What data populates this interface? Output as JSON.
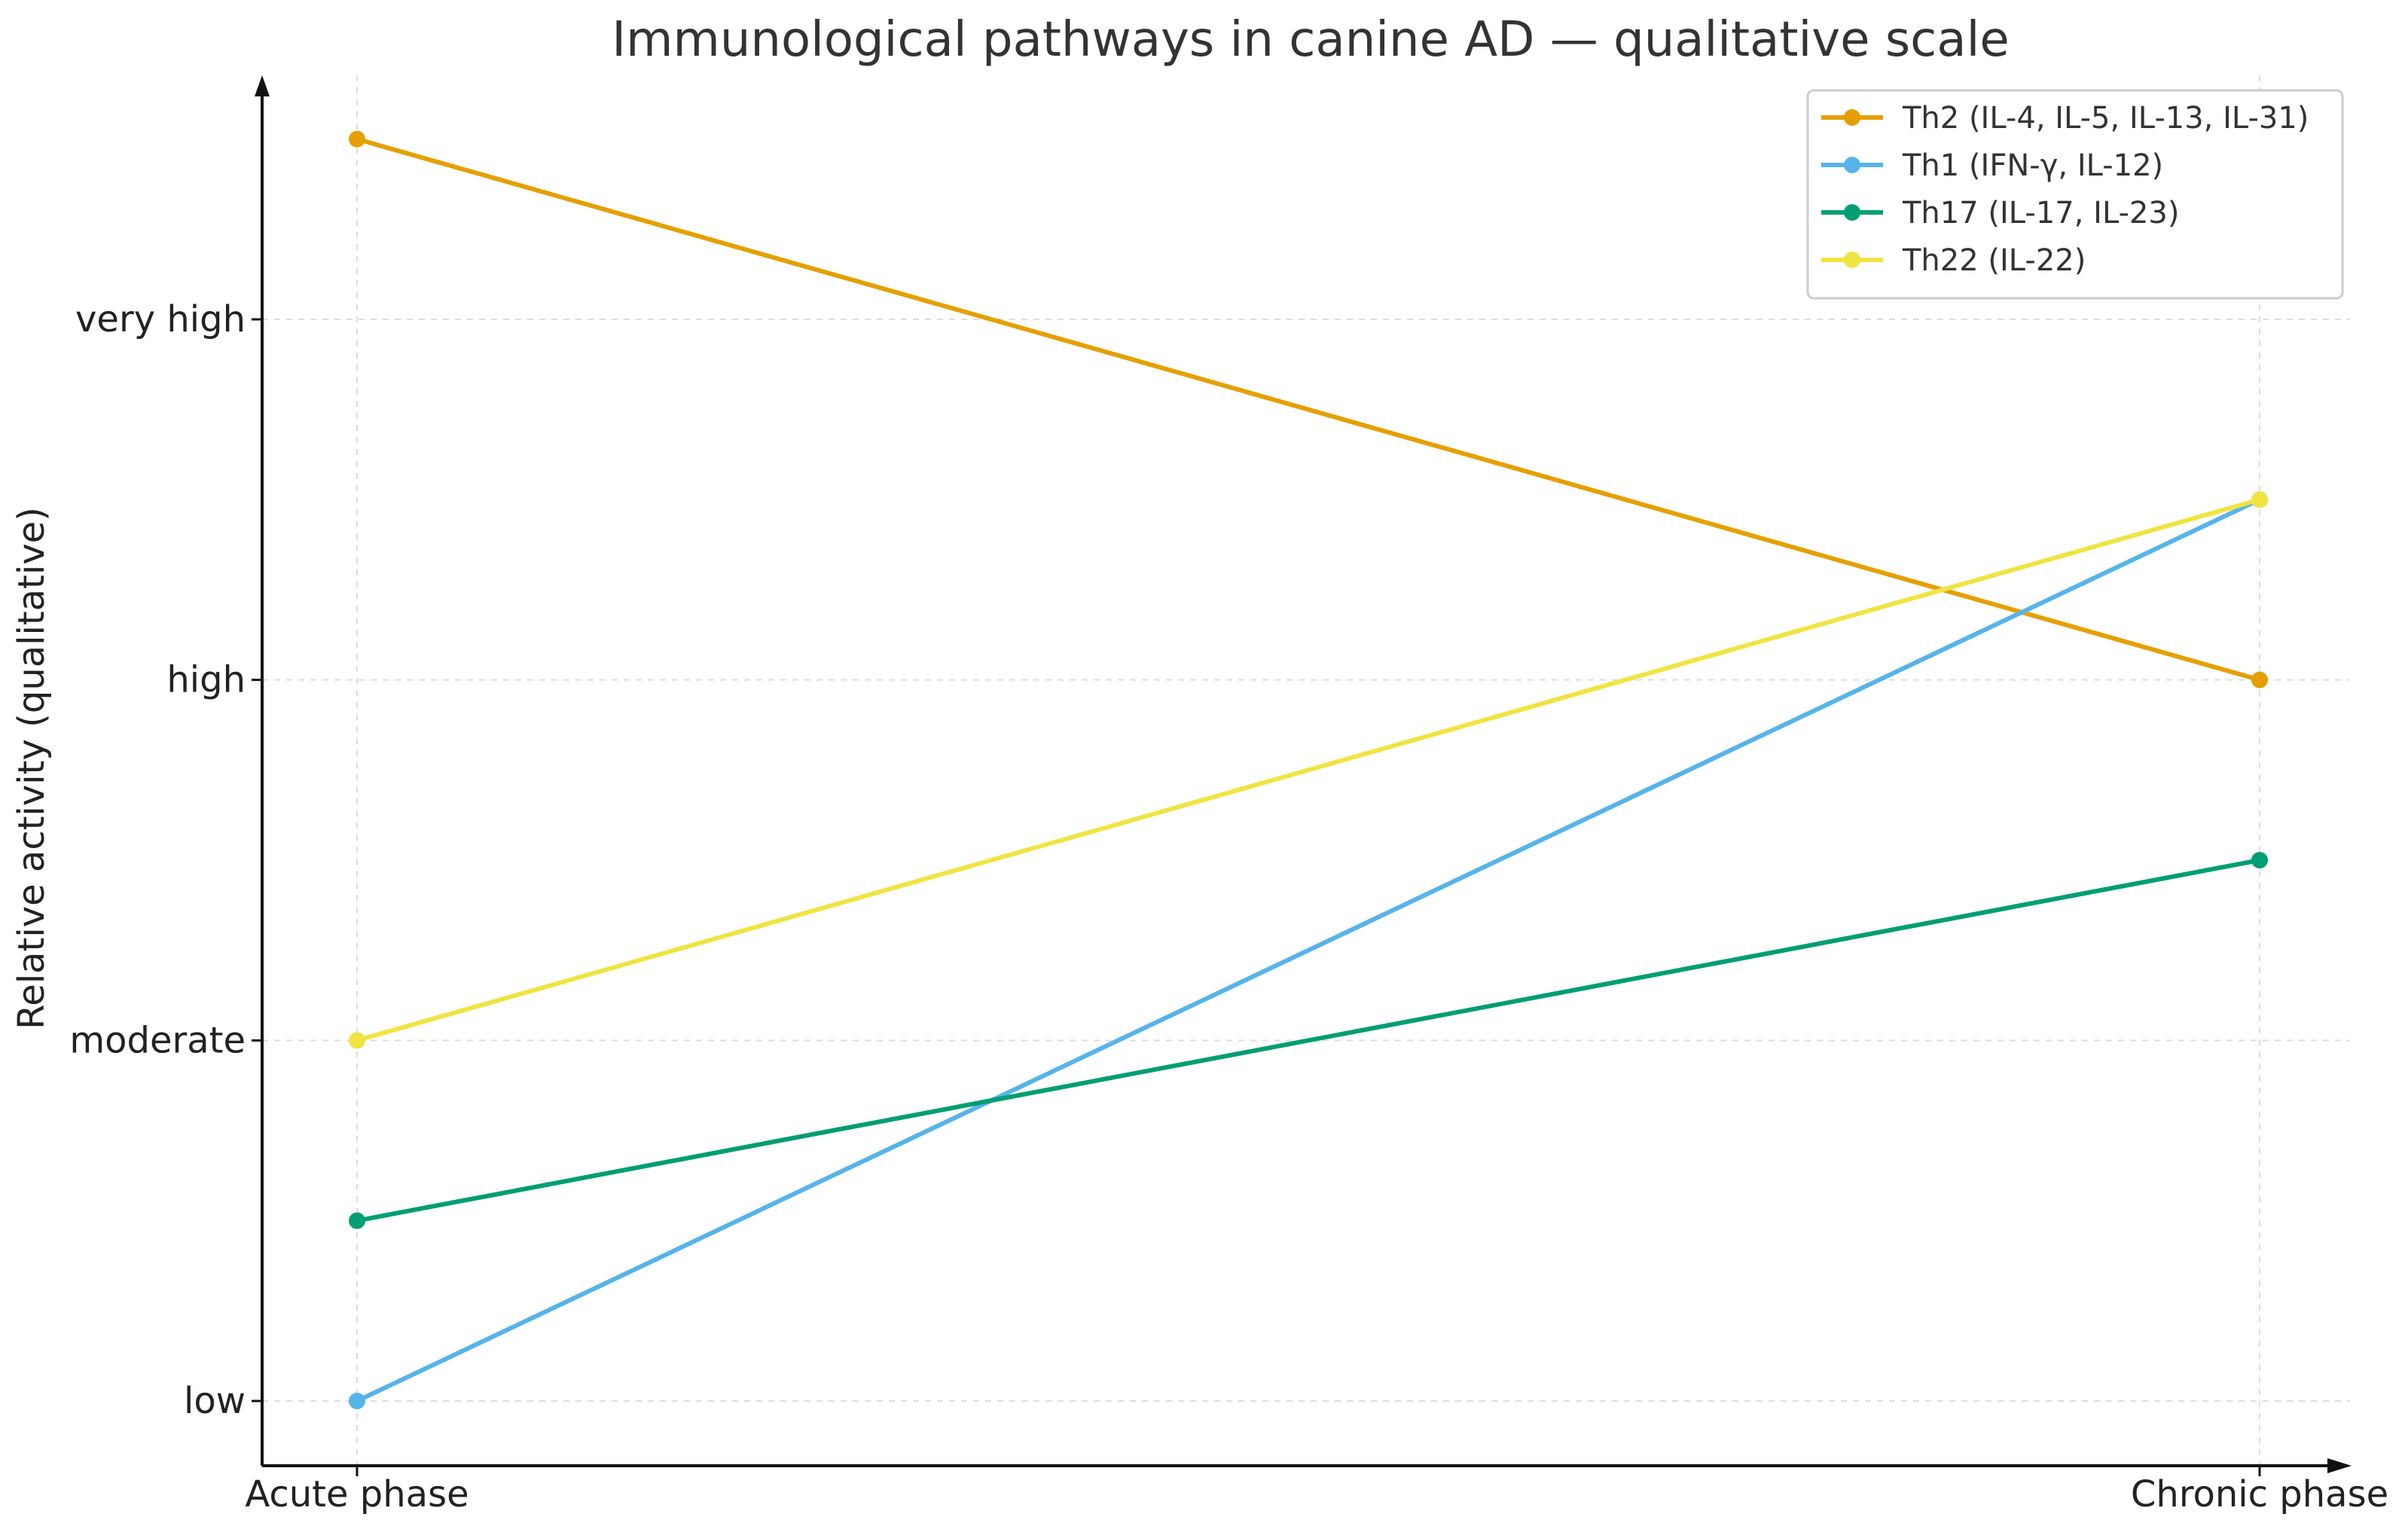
{
  "chart_data": {
    "type": "line",
    "title": "Immunological pathways in canine AD — qualitative scale",
    "xlabel": "",
    "ylabel": "Relative activity (qualitative)",
    "categories": [
      "Acute phase",
      "Chronic phase"
    ],
    "y_ticks": [
      {
        "value": 1,
        "label": "low"
      },
      {
        "value": 2,
        "label": "moderate"
      },
      {
        "value": 3,
        "label": "high"
      },
      {
        "value": 4,
        "label": "very high"
      }
    ],
    "ylim": [
      0.82,
      4.55
    ],
    "grid": true,
    "legend_position": "top-right",
    "series": [
      {
        "name": "Th2 (IL-4, IL-5, IL-13, IL-31)",
        "values": [
          4.5,
          3.0
        ],
        "color": "#E69F00"
      },
      {
        "name": "Th1 (IFN-γ, IL-12)",
        "values": [
          1.0,
          3.5
        ],
        "color": "#56B4E9"
      },
      {
        "name": "Th17 (IL-17, IL-23)",
        "values": [
          1.5,
          2.5
        ],
        "color": "#009E73"
      },
      {
        "name": "Th22 (IL-22)",
        "values": [
          2.0,
          3.5
        ],
        "color": "#F0E442"
      }
    ]
  }
}
